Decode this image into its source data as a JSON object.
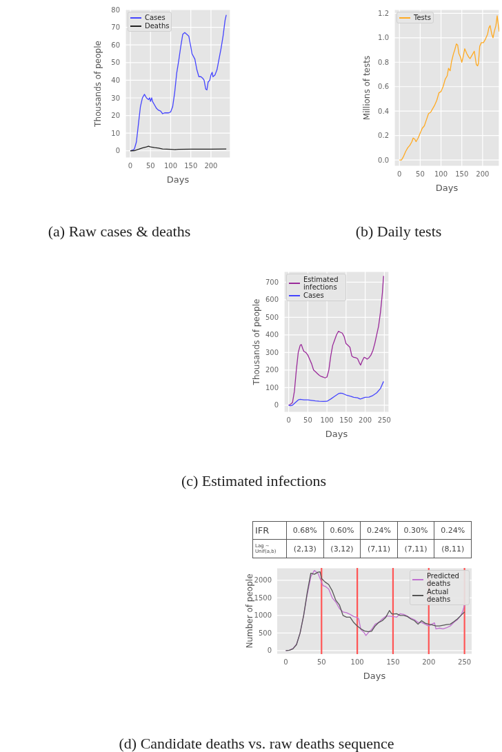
{
  "chart_data": [
    {
      "type": "line",
      "title": "(a) Raw cases & deaths",
      "xlabel": "Days",
      "ylabel": "Thousands of people",
      "xlim": [
        -12,
        248
      ],
      "xticks": [
        0,
        50,
        100,
        150,
        200
      ],
      "ylim": [
        -4,
        80
      ],
      "yticks": [
        0,
        10,
        20,
        30,
        40,
        50,
        60,
        70,
        80
      ],
      "grid": true,
      "legend": "top left",
      "marker": "none",
      "line_style": "solid",
      "series": [
        {
          "name": "Cases",
          "color": "#4444ff",
          "x": [
            0,
            5,
            10,
            15,
            20,
            25,
            30,
            35,
            40,
            45,
            48,
            50,
            53,
            55,
            60,
            65,
            70,
            75,
            80,
            85,
            90,
            95,
            100,
            105,
            110,
            115,
            120,
            125,
            130,
            135,
            140,
            145,
            150,
            153,
            160,
            165,
            170,
            175,
            180,
            183,
            187,
            190,
            193,
            197,
            200,
            203,
            205,
            210,
            215,
            220,
            225,
            230,
            235,
            238
          ],
          "values": [
            0,
            0.3,
            1,
            5,
            15,
            25,
            30,
            32,
            30,
            29,
            30,
            28,
            30,
            28,
            26,
            24,
            23,
            22.5,
            21,
            21.5,
            21.5,
            21.5,
            22,
            25,
            33,
            44,
            51,
            59,
            66,
            67,
            66,
            65,
            59,
            55,
            52,
            46,
            42,
            42,
            41,
            40,
            35,
            34.5,
            39,
            40,
            43,
            44.5,
            42,
            43,
            46,
            52,
            58,
            65,
            74,
            77
          ]
        },
        {
          "name": "Deaths",
          "color": "#222222",
          "x": [
            0,
            10,
            20,
            30,
            40,
            45,
            50,
            60,
            70,
            80,
            100,
            110,
            120,
            150,
            200,
            238
          ],
          "values": [
            0,
            0.1,
            0.8,
            1.6,
            2.2,
            2.6,
            2.2,
            1.8,
            1.5,
            1,
            0.8,
            0.6,
            0.8,
            0.9,
            0.9,
            1
          ]
        }
      ]
    },
    {
      "type": "line",
      "title": "(b) Daily tests",
      "xlabel": "Days",
      "ylabel": "Millions of tests",
      "xlim": [
        -12,
        240
      ],
      "xticks": [
        0,
        50,
        100,
        150,
        200
      ],
      "ylim": [
        -0.05,
        1.23
      ],
      "yticks": [
        {
          "value": 0,
          "label": "0.0"
        },
        {
          "value": 0.2,
          "label": "0.2"
        },
        {
          "value": 0.4,
          "label": "0.4"
        },
        {
          "value": 0.6,
          "label": "0.6"
        },
        {
          "value": 0.8,
          "label": "0.8"
        },
        {
          "value": 1,
          "label": "1.0"
        },
        {
          "value": 1.2,
          "label": "1.2"
        }
      ],
      "grid": true,
      "legend": "top left",
      "marker": "none",
      "line_style": "solid",
      "series": [
        {
          "name": "Tests",
          "color": "#ffaa22",
          "x": [
            0,
            5,
            10,
            15,
            20,
            25,
            30,
            33,
            37,
            40,
            45,
            50,
            55,
            60,
            65,
            70,
            75,
            80,
            85,
            90,
            95,
            100,
            105,
            110,
            115,
            118,
            122,
            125,
            130,
            133,
            137,
            140,
            143,
            147,
            150,
            153,
            157,
            162,
            167,
            170,
            175,
            180,
            185,
            188,
            190,
            193,
            197,
            202,
            207,
            212,
            215,
            218,
            222,
            225,
            228,
            232,
            235,
            238,
            240
          ],
          "values": [
            0,
            0,
            0.03,
            0.07,
            0.1,
            0.12,
            0.15,
            0.18,
            0.17,
            0.15,
            0.18,
            0.22,
            0.26,
            0.28,
            0.33,
            0.38,
            0.39,
            0.42,
            0.45,
            0.49,
            0.55,
            0.56,
            0.6,
            0.66,
            0.69,
            0.75,
            0.73,
            0.8,
            0.87,
            0.9,
            0.95,
            0.94,
            0.87,
            0.84,
            0.8,
            0.84,
            0.91,
            0.87,
            0.84,
            0.83,
            0.86,
            0.89,
            0.78,
            0.77,
            0.79,
            0.93,
            0.96,
            0.96,
            0.99,
            1.03,
            1.08,
            1.1,
            1.03,
            1,
            1.05,
            1.1,
            1.18,
            1.1,
            1.05
          ]
        }
      ]
    },
    {
      "type": "line",
      "title": "(c) Estimated infections",
      "xlabel": "Days",
      "ylabel": "Thousands of people",
      "xlim": [
        -12,
        262
      ],
      "xticks": [
        0,
        50,
        100,
        150,
        200,
        250
      ],
      "ylim": [
        -40,
        760
      ],
      "yticks": [
        0,
        100,
        200,
        300,
        400,
        500,
        600,
        700
      ],
      "grid": true,
      "legend": "top left",
      "marker": "none",
      "line_style": "solid",
      "series": [
        {
          "name": "Estimated infections",
          "color": "#9a2a9a",
          "x": [
            0,
            5,
            10,
            15,
            20,
            25,
            30,
            33,
            37,
            40,
            45,
            50,
            55,
            60,
            65,
            70,
            75,
            80,
            85,
            90,
            95,
            100,
            105,
            110,
            115,
            120,
            125,
            130,
            135,
            140,
            145,
            150,
            155,
            160,
            165,
            170,
            175,
            180,
            185,
            188,
            192,
            197,
            200,
            205,
            210,
            215,
            220,
            225,
            230,
            235,
            240,
            245,
            248
          ],
          "values": [
            0,
            5,
            15,
            80,
            200,
            300,
            340,
            345,
            320,
            305,
            300,
            285,
            260,
            235,
            200,
            190,
            180,
            170,
            163,
            160,
            155,
            160,
            200,
            280,
            340,
            370,
            400,
            420,
            415,
            410,
            390,
            350,
            340,
            330,
            280,
            272,
            270,
            265,
            240,
            228,
            250,
            272,
            270,
            262,
            270,
            285,
            310,
            350,
            400,
            450,
            530,
            640,
            735
          ]
        },
        {
          "name": "Cases",
          "color": "#4444ff",
          "x": [
            0,
            5,
            10,
            15,
            20,
            25,
            30,
            40,
            50,
            60,
            70,
            80,
            90,
            100,
            110,
            120,
            130,
            135,
            140,
            150,
            160,
            170,
            180,
            187,
            190,
            200,
            210,
            220,
            230,
            240,
            248
          ],
          "values": [
            0,
            -3,
            0,
            10,
            20,
            30,
            33,
            30,
            30,
            27,
            24,
            22,
            21,
            22,
            35,
            50,
            65,
            68,
            67,
            58,
            52,
            45,
            42,
            35,
            37,
            45,
            46,
            55,
            70,
            95,
            135
          ]
        }
      ]
    },
    {
      "type": "line",
      "title": "(d) Candidate deaths vs. raw deaths sequence",
      "xlabel": "Days",
      "ylabel": "Number of people",
      "xlim": [
        -12,
        260
      ],
      "xticks": [
        0,
        50,
        100,
        150,
        200,
        250
      ],
      "ylim": [
        -100,
        2350
      ],
      "yticks": [
        0,
        500,
        1000,
        1500,
        2000
      ],
      "grid": "y",
      "legend": "top right",
      "marker": "none",
      "line_style": "solid",
      "annotations": [
        "IFR",
        "0.68%",
        "0.60%",
        "0.24%",
        "0.30%",
        "0.24%",
        "Lag ~ Unif(a,b)",
        "(2,13)",
        "(3,12)",
        "(7,11)",
        "(7,11)",
        "(8,11)"
      ],
      "ref_lines": [
        {
          "axis": "x",
          "value": 50,
          "color": "#ff5555"
        },
        {
          "axis": "x",
          "value": 100,
          "color": "#ff5555"
        },
        {
          "axis": "x",
          "value": 150,
          "color": "#ff5555"
        },
        {
          "axis": "x",
          "value": 200,
          "color": "#ff5555"
        },
        {
          "axis": "x",
          "value": 250,
          "color": "#ff5555"
        }
      ],
      "series": [
        {
          "name": "Predicted deaths",
          "color": "#c070d0",
          "x": [
            0,
            5,
            10,
            15,
            20,
            25,
            30,
            35,
            40,
            45,
            50,
            52,
            55,
            60,
            65,
            70,
            75,
            80,
            85,
            90,
            95,
            100,
            102,
            105,
            110,
            112,
            115,
            120,
            125,
            130,
            135,
            140,
            145,
            150,
            155,
            160,
            165,
            170,
            175,
            180,
            185,
            190,
            195,
            200,
            205,
            208,
            210,
            215,
            220,
            225,
            230,
            235,
            240,
            245,
            248,
            250
          ],
          "values": [
            0,
            10,
            60,
            180,
            500,
            1000,
            1600,
            2100,
            2280,
            2200,
            1950,
            1850,
            1830,
            1750,
            1500,
            1380,
            1200,
            1100,
            1080,
            1030,
            970,
            940,
            900,
            600,
            500,
            430,
            500,
            600,
            750,
            800,
            900,
            980,
            980,
            970,
            950,
            1050,
            1030,
            980,
            920,
            880,
            800,
            800,
            750,
            700,
            760,
            790,
            620,
            640,
            620,
            650,
            700,
            800,
            880,
            1000,
            1150,
            1300
          ]
        },
        {
          "name": "Actual deaths",
          "color": "#555555",
          "x": [
            0,
            5,
            10,
            15,
            20,
            25,
            30,
            35,
            40,
            45,
            48,
            50,
            55,
            60,
            65,
            70,
            75,
            80,
            85,
            90,
            95,
            100,
            105,
            110,
            115,
            120,
            125,
            130,
            135,
            140,
            145,
            148,
            150,
            155,
            160,
            165,
            170,
            175,
            180,
            185,
            190,
            195,
            200,
            205,
            210,
            215,
            220,
            225,
            230,
            235,
            240,
            245,
            250
          ],
          "values": [
            0,
            10,
            50,
            170,
            500,
            1000,
            1650,
            2200,
            2170,
            2230,
            2240,
            2050,
            1950,
            1880,
            1700,
            1430,
            1300,
            1000,
            950,
            950,
            800,
            700,
            620,
            560,
            540,
            550,
            700,
            800,
            850,
            950,
            1140,
            1050,
            1040,
            1050,
            1000,
            1000,
            970,
            900,
            850,
            750,
            850,
            780,
            750,
            730,
            700,
            700,
            720,
            740,
            750,
            820,
            900,
            1000,
            1100
          ]
        }
      ]
    }
  ]
}
